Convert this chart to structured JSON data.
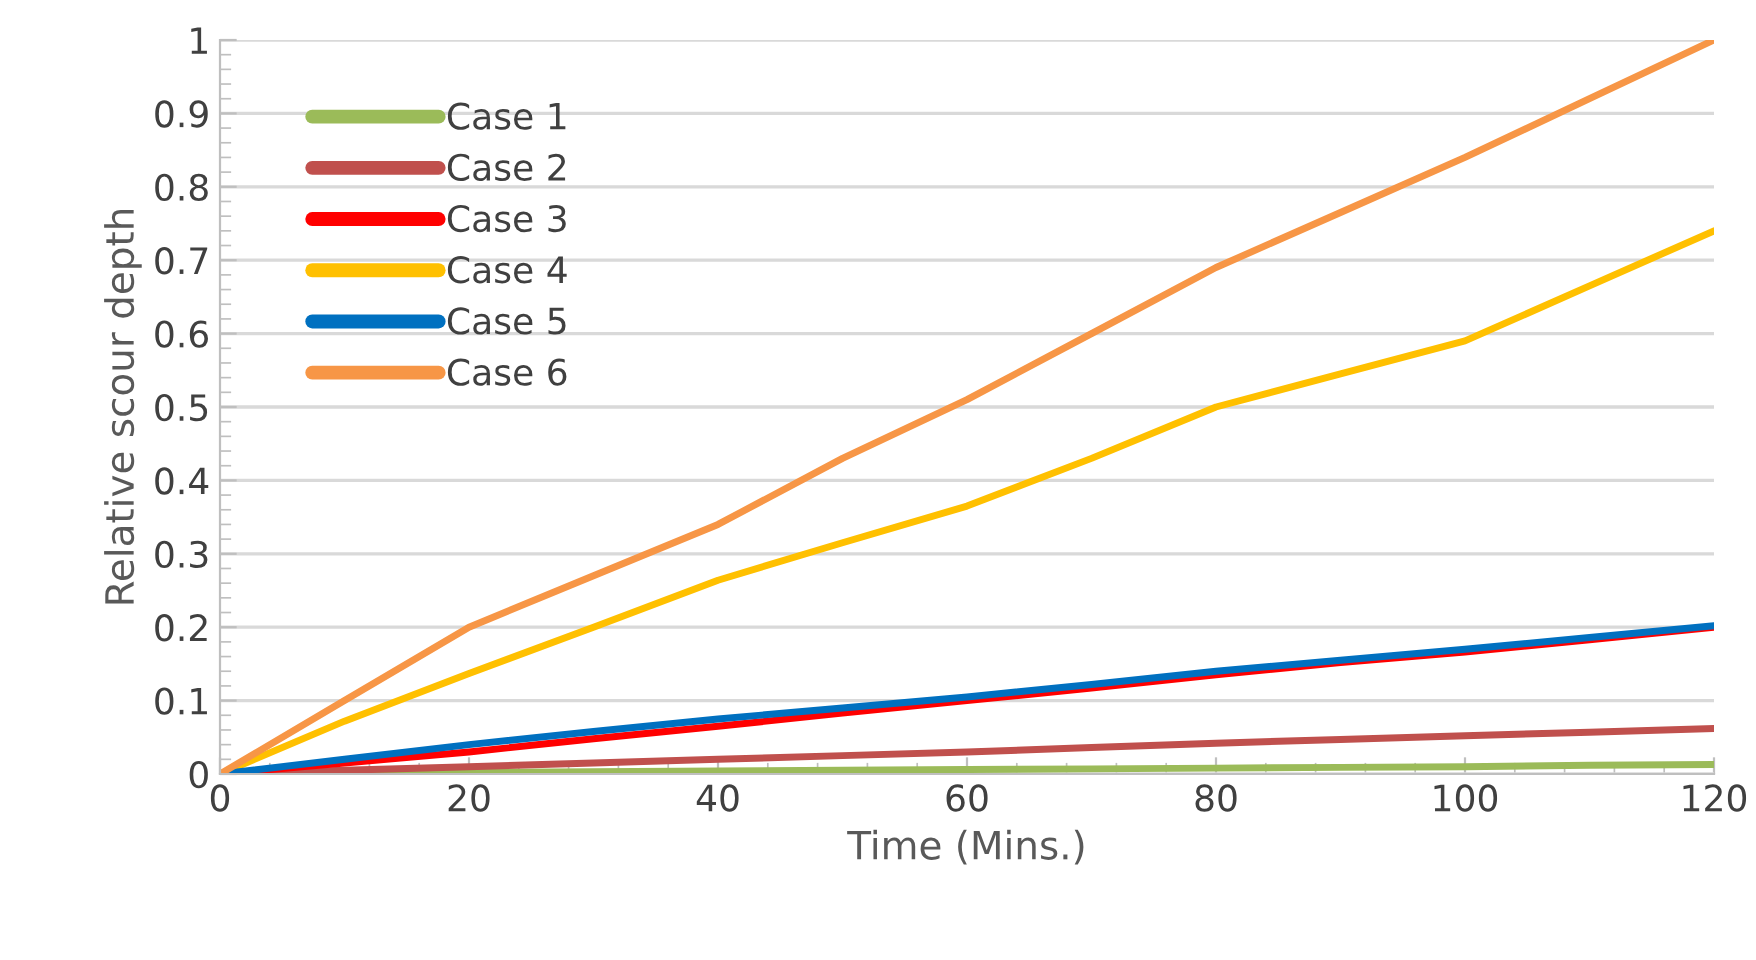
{
  "chart_data": {
    "type": "line",
    "xlabel": "Time (Mins.)",
    "ylabel": "Relative scour depth",
    "x": [
      0,
      10,
      20,
      30,
      40,
      50,
      60,
      70,
      80,
      90,
      100,
      110,
      120
    ],
    "series": [
      {
        "name": "Case 1",
        "color": "#9bbb59",
        "values": [
          0,
          0.001,
          0.002,
          0.003,
          0.004,
          0.005,
          0.006,
          0.007,
          0.008,
          0.009,
          0.01,
          0.012,
          0.013
        ]
      },
      {
        "name": "Case 2",
        "color": "#c0504d",
        "values": [
          0,
          0.005,
          0.01,
          0.015,
          0.02,
          0.025,
          0.03,
          0.036,
          0.042,
          0.047,
          0.052,
          0.057,
          0.062
        ]
      },
      {
        "name": "Case 3",
        "color": "#ff0000",
        "values": [
          0,
          0.015,
          0.03,
          0.048,
          0.065,
          0.083,
          0.1,
          0.117,
          0.135,
          0.152,
          0.166,
          0.183,
          0.2
        ]
      },
      {
        "name": "Case 4",
        "color": "#ffc000",
        "values": [
          0,
          0.072,
          0.137,
          0.2,
          0.264,
          0.315,
          0.365,
          0.43,
          0.5,
          0.545,
          0.59,
          0.665,
          0.74
        ]
      },
      {
        "name": "Case 5",
        "color": "#0070c0",
        "values": [
          0,
          0.02,
          0.04,
          0.058,
          0.075,
          0.09,
          0.105,
          0.122,
          0.14,
          0.155,
          0.17,
          0.186,
          0.202
        ]
      },
      {
        "name": "Case 6",
        "color": "#f79646",
        "values": [
          0,
          0.1,
          0.2,
          0.27,
          0.34,
          0.43,
          0.51,
          0.6,
          0.69,
          0.765,
          0.84,
          0.92,
          1.0
        ]
      }
    ],
    "xlim": [
      0,
      120
    ],
    "xticks": [
      0,
      20,
      40,
      60,
      80,
      100,
      120
    ],
    "ylim": [
      0,
      1
    ],
    "yticks": [
      0,
      0.1,
      0.2,
      0.3,
      0.4,
      0.5,
      0.6,
      0.7,
      0.8,
      0.9,
      1
    ],
    "grid": "y",
    "legend": "top left",
    "marker": "none",
    "line_style": "solid"
  }
}
